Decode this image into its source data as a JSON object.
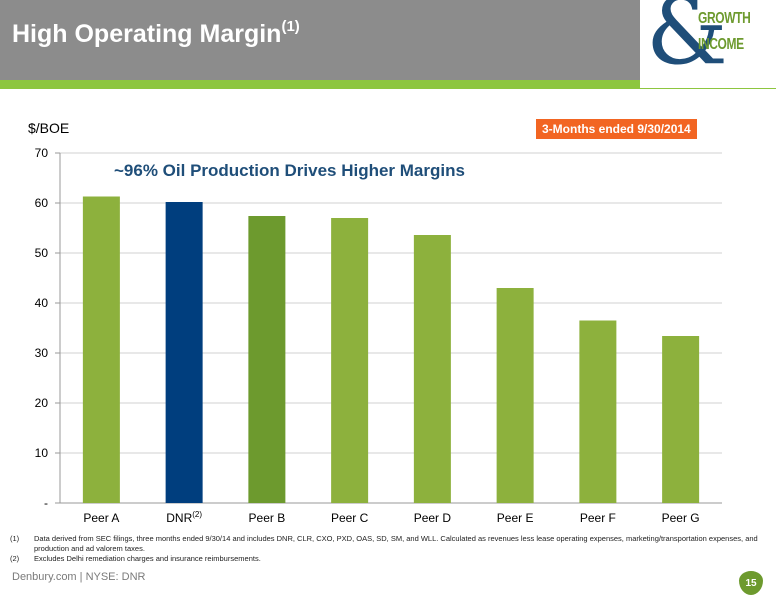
{
  "header": {
    "title": "High Operating Margin",
    "title_sup": "(1)"
  },
  "logo": {
    "symbol": "&",
    "line1": "GROWTH",
    "line2": "INCOME"
  },
  "unit_label": "$/BOE",
  "period_badge": "3-Months ended 9/30/2014",
  "subtitle": "~96% Oil Production Drives Higher Margins",
  "colors": {
    "header_bg": "#8c8c8c",
    "accent_green": "#8dc63f",
    "bar_green": "#8db13d",
    "bar_dark_green": "#6d9a2e",
    "bar_navy": "#003e7e",
    "badge_orange": "#f26522"
  },
  "chart_data": {
    "type": "bar",
    "categories": [
      "Peer A",
      "DNR",
      "Peer B",
      "Peer C",
      "Peer D",
      "Peer E",
      "Peer F",
      "Peer G"
    ],
    "category_sups": [
      "",
      "(2)",
      "",
      "",
      "",
      "",
      "",
      ""
    ],
    "values": [
      61.3,
      60.2,
      57.4,
      57.0,
      53.6,
      43.0,
      36.5,
      33.4
    ],
    "bar_colors": [
      "#8db13d",
      "#003e7e",
      "#6d9a2e",
      "#8db13d",
      "#8db13d",
      "#8db13d",
      "#8db13d",
      "#8db13d"
    ],
    "ylabel": "$/BOE",
    "ylim": [
      0,
      70
    ],
    "yticks": [
      0,
      10,
      20,
      30,
      40,
      50,
      60,
      70
    ],
    "ytick_labels": [
      "-",
      "10",
      "20",
      "30",
      "40",
      "50",
      "60",
      "70"
    ],
    "grid": true
  },
  "footnotes": [
    {
      "num": "(1)",
      "text": "Data derived from SEC filings, three months ended 9/30/14 and includes DNR, CLR, CXO, PXD, OAS, SD, SM, and WLL. Calculated as revenues less lease operating expenses, marketing/transportation expenses, and production and ad valorem taxes."
    },
    {
      "num": "(2)",
      "text": "Excludes Delhi remediation charges and insurance reimbursements."
    }
  ],
  "footer": {
    "left": "Denbury.com | NYSE: DNR",
    "page": "15"
  }
}
